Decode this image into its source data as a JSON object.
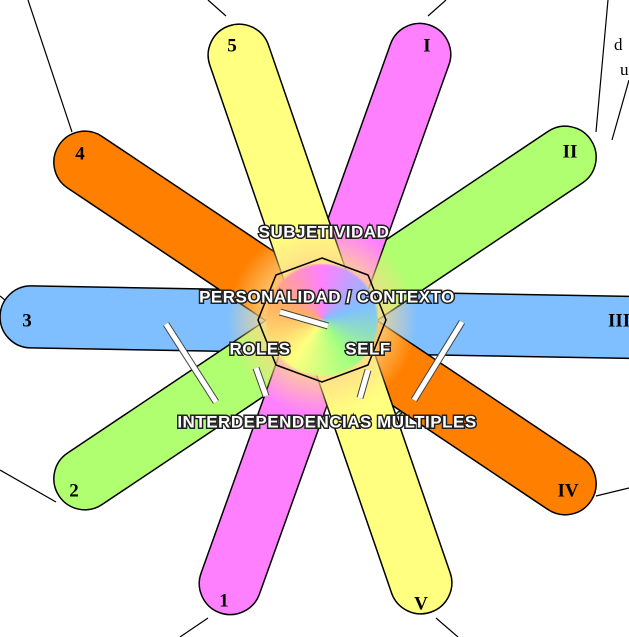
{
  "petals": [
    {
      "outer": "5",
      "inner": "V"
    },
    {
      "outer": "I",
      "inner": "1"
    },
    {
      "outer": "II",
      "inner": "2"
    },
    {
      "outer": "4",
      "inner": "IV"
    },
    {
      "outer": "3",
      "inner": "III"
    }
  ],
  "labels": {
    "top": "SUBJETIVIDAD",
    "middle": "PERSONALIDAD / CONTEXTO",
    "left": "ROLES",
    "right": "SELF",
    "bottom": "INTERDEPENDENCIAS MÚLTIPLES"
  },
  "fragments": [
    "d",
    "u"
  ]
}
